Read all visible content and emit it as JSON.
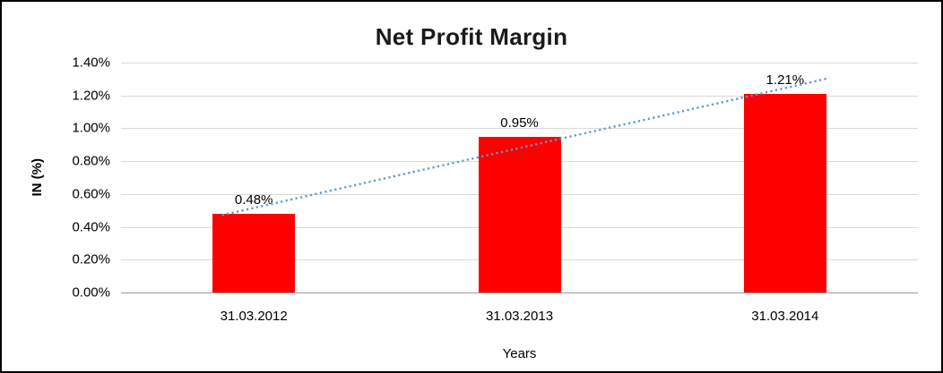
{
  "chart_data": {
    "type": "bar",
    "title": "Net Profit Margin",
    "categories": [
      "31.03.2012",
      "31.03.2013",
      "31.03.2014"
    ],
    "values": [
      0.48,
      0.95,
      1.21
    ],
    "data_labels": [
      "0.48%",
      "0.95%",
      "1.21%"
    ],
    "xlabel": "Years",
    "ylabel": "IN (%)",
    "ylim": [
      0,
      1.4
    ],
    "yticks": [
      {
        "value": 0.0,
        "label": "0.00%"
      },
      {
        "value": 0.2,
        "label": "0.20%"
      },
      {
        "value": 0.4,
        "label": "0.40%"
      },
      {
        "value": 0.6,
        "label": "0.60%"
      },
      {
        "value": 0.8,
        "label": "0.80%"
      },
      {
        "value": 1.0,
        "label": "1.00%"
      },
      {
        "value": 1.2,
        "label": "1.20%"
      },
      {
        "value": 1.4,
        "label": "1.40%"
      }
    ],
    "grid": true,
    "legend": "none",
    "bar_color": "#fe0000",
    "trendline": {
      "type": "linear",
      "style": "dotted",
      "color": "#5b9bd5"
    }
  }
}
